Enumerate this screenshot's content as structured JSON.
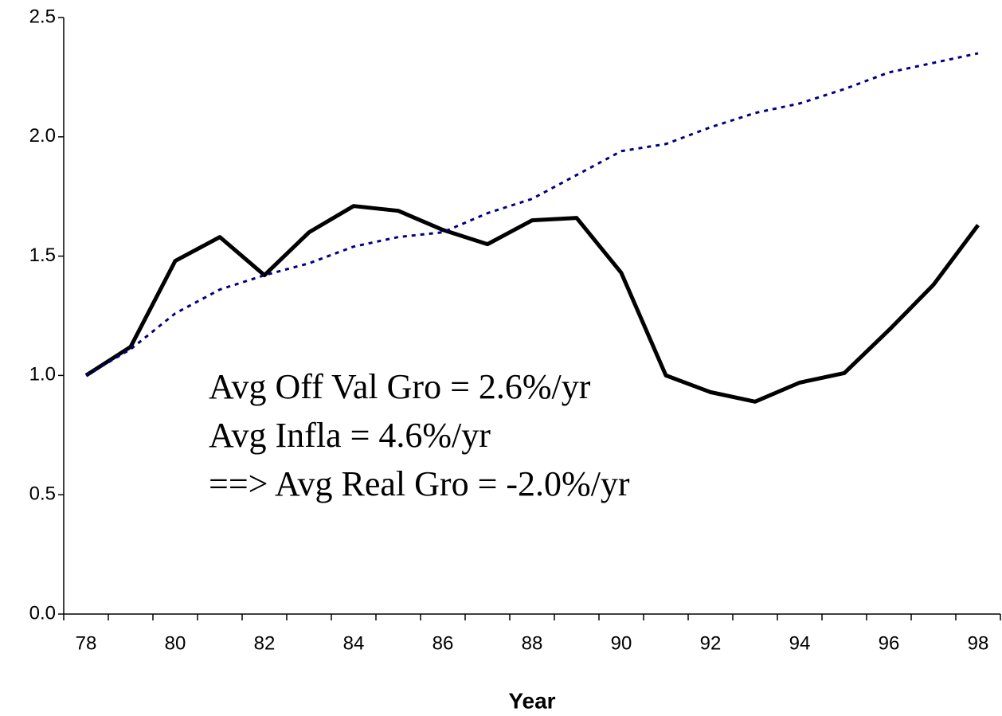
{
  "chart_data": {
    "type": "line",
    "x_label": "Year",
    "categories": [
      "78",
      null,
      "80",
      null,
      "82",
      null,
      "84",
      null,
      "86",
      null,
      "88",
      null,
      "90",
      null,
      "92",
      null,
      "94",
      null,
      "96",
      null,
      "98"
    ],
    "series": [
      {
        "color": "#000000",
        "style": "solid",
        "values": [
          1.0,
          1.12,
          1.48,
          1.58,
          1.42,
          1.6,
          1.71,
          1.69,
          1.61,
          1.55,
          1.65,
          1.66,
          1.43,
          1.0,
          0.93,
          0.89,
          0.97,
          1.01,
          1.19,
          1.38,
          1.63
        ]
      },
      {
        "color": "#000080",
        "style": "dotted",
        "values": [
          1.0,
          1.11,
          1.26,
          1.36,
          1.42,
          1.47,
          1.54,
          1.58,
          1.6,
          1.68,
          1.74,
          1.84,
          1.94,
          1.97,
          2.04,
          2.1,
          2.14,
          2.2,
          2.27,
          2.31,
          2.35
        ]
      }
    ],
    "ylim": [
      0,
      2.5
    ],
    "yticks": [
      {
        "value": 0,
        "label": "0.0"
      },
      0.5,
      {
        "value": 1,
        "label": "1.0"
      },
      1.5,
      {
        "value": 2,
        "label": "2.0"
      },
      2.5
    ],
    "grid": false,
    "annotations": [
      "Avg Off Val Gro = 2.6%/yr",
      "Avg Infla = 4.6%/yr",
      "==> Avg Real Gro = -2.0%/yr"
    ]
  }
}
